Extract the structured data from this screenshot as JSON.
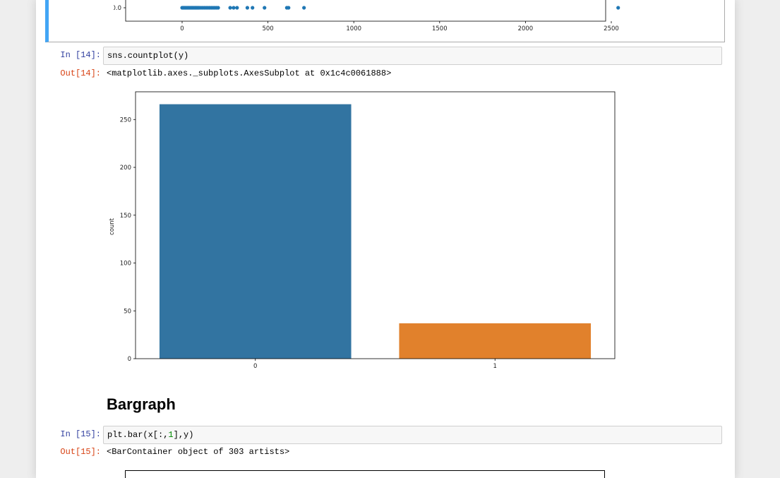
{
  "cell13": {
    "xticks": [
      "0",
      "500",
      "1000",
      "1500",
      "2000",
      "2500"
    ],
    "ytick": "0.0",
    "scatter_x": [
      0,
      5,
      10,
      15,
      20,
      25,
      30,
      35,
      40,
      45,
      50,
      55,
      60,
      65,
      70,
      75,
      80,
      85,
      90,
      95,
      100,
      110,
      120,
      130,
      140,
      150,
      160,
      170,
      180,
      190,
      200,
      210,
      280,
      300,
      320,
      380,
      410,
      480,
      610,
      620,
      710,
      2540
    ]
  },
  "cell14": {
    "in_prompt": "In [14]:",
    "code_func": "sns.countplot",
    "code_arg": "(y)",
    "out_prompt": "Out[14]:",
    "output_text": "<matplotlib.axes._subplots.AxesSubplot at 0x1c4c0061888>"
  },
  "chart_data": {
    "type": "bar",
    "categories": [
      "0",
      "1"
    ],
    "values": [
      266,
      37
    ],
    "colors": [
      "#3274a1",
      "#e1812c"
    ],
    "title": "",
    "xlabel": "",
    "ylabel": "count",
    "ylim": [
      0,
      279
    ],
    "yticks": [
      "0",
      "50",
      "100",
      "150",
      "200",
      "250"
    ]
  },
  "markdown": {
    "heading": "Bargraph"
  },
  "cell15": {
    "in_prompt": "In [15]:",
    "code_pre": "plt.bar(x[:,",
    "code_num": "1",
    "code_post": "],y)",
    "out_prompt": "Out[15]:",
    "output_text": "<BarContainer object of 303 artists>"
  }
}
